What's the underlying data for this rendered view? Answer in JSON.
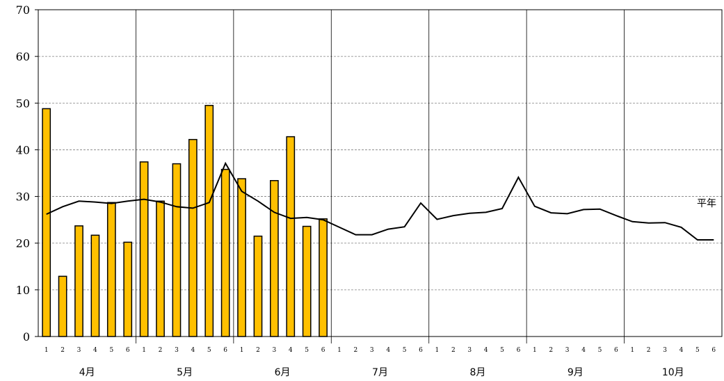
{
  "chart_data": {
    "type": "bar",
    "ylim": [
      0,
      70
    ],
    "yticks": [
      "0",
      "10",
      "20",
      "30",
      "40",
      "50",
      "60",
      "70"
    ],
    "period_labels": [
      "1",
      "2",
      "3",
      "4",
      "5",
      "6"
    ],
    "months": [
      "4月",
      "5月",
      "6月",
      "7月",
      "8月",
      "9月",
      "10月"
    ],
    "bar_color": "#ffc000",
    "series": [
      {
        "values": [
          48.8,
          12.9,
          23.7,
          21.7,
          28.7,
          20.2,
          37.4,
          29.0,
          37.0,
          42.2,
          49.5,
          35.8,
          33.8,
          21.5,
          33.4,
          42.8,
          23.6,
          25.2
        ]
      },
      {
        "name": "平年",
        "type": "line",
        "values": [
          26.2,
          27.8,
          29.0,
          28.8,
          28.5,
          29.0,
          29.4,
          28.8,
          27.8,
          27.5,
          28.7,
          37.1,
          31.1,
          29.0,
          26.6,
          25.3,
          25.5,
          25.0,
          23.4,
          21.8,
          21.8,
          23.0,
          23.5,
          28.6,
          25.1,
          25.9,
          26.4,
          26.6,
          27.4,
          34.1,
          27.9,
          26.5,
          26.3,
          27.2,
          27.3,
          25.9,
          24.6,
          24.3,
          24.4,
          23.4,
          20.7,
          20.7
        ]
      }
    ]
  }
}
